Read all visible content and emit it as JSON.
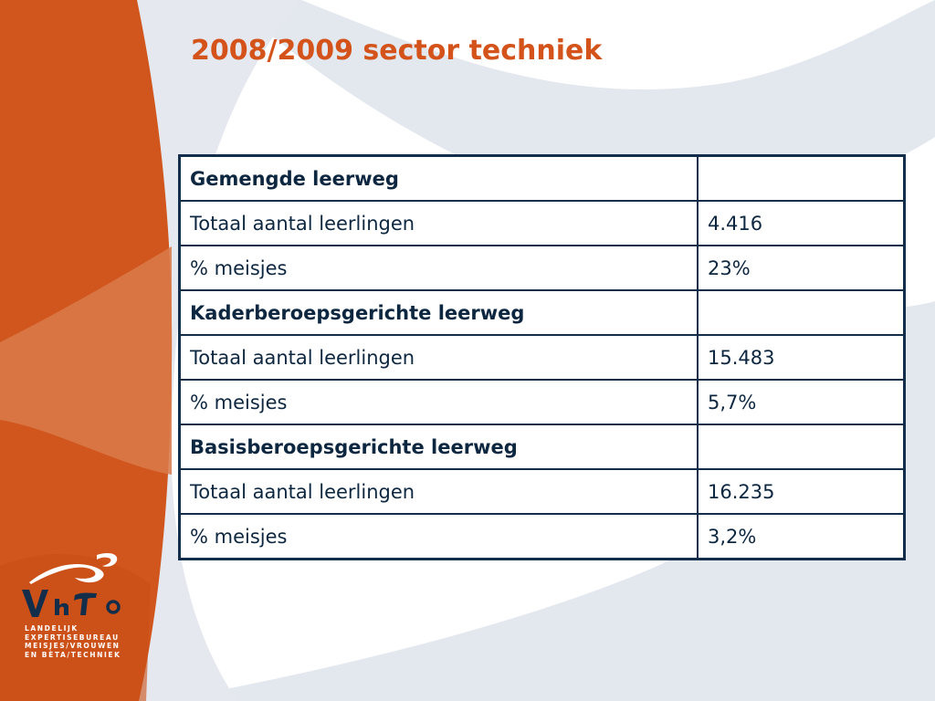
{
  "slide": {
    "title": "2008/2009 sector techniek"
  },
  "colors": {
    "accent_orange": "#d4531b",
    "table_border": "#132e4a",
    "background_swirl": "#e3e7ee"
  },
  "table": {
    "rows": [
      {
        "type": "section",
        "label": "Gemengde leerweg",
        "value": ""
      },
      {
        "type": "data",
        "label": "Totaal aantal leerlingen",
        "value": "4.416"
      },
      {
        "type": "data",
        "label": "% meisjes",
        "value": "23%"
      },
      {
        "type": "section",
        "label": "Kaderberoepsgerichte leerweg",
        "value": ""
      },
      {
        "type": "data",
        "label": "Totaal aantal leerlingen",
        "value": "15.483"
      },
      {
        "type": "data",
        "label": "% meisjes",
        "value": "5,7%"
      },
      {
        "type": "section",
        "label": "Basisberoepsgerichte leerweg",
        "value": ""
      },
      {
        "type": "data",
        "label": "Totaal aantal leerlingen",
        "value": "16.235"
      },
      {
        "type": "data",
        "label": "% meisjes",
        "value": "3,2%"
      }
    ]
  },
  "logo": {
    "wordmark": "VhTo",
    "tagline": [
      "LANDELIJK",
      "EXPERTISEBUREAU",
      "MEISJES/VROUWEN",
      "EN BÈTA/TECHNIEK"
    ]
  }
}
